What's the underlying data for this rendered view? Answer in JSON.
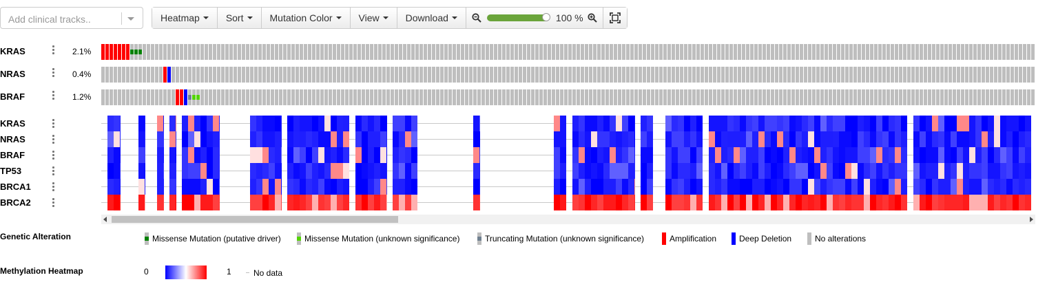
{
  "toolbar": {
    "clinical_placeholder": "Add clinical tracks..",
    "buttons": [
      "Heatmap",
      "Sort",
      "Mutation Color",
      "View",
      "Download"
    ],
    "zoom_value": "100 %",
    "zoom_level": 1.0
  },
  "genetic_tracks": [
    {
      "name": "KRAS",
      "pct": "2.1%"
    },
    {
      "name": "NRAS",
      "pct": "0.4%"
    },
    {
      "name": "BRAF",
      "pct": "1.2%"
    }
  ],
  "heatmap_tracks": [
    "KRAS",
    "NRAS",
    "BRAF",
    "TP53",
    "BRCA1",
    "BRCA2"
  ],
  "colors": {
    "missense_driver": "#008000",
    "missense_unknown": "#53d400",
    "truncating_unknown": "#708090",
    "amplification": "#ff0000",
    "deep_deletion": "#0000ff",
    "no_alteration": "#bebebe"
  },
  "legend": {
    "genetic_title": "Genetic Alteration",
    "genetic_items": [
      {
        "label": "Missense Mutation (putative driver)",
        "color": "#008000"
      },
      {
        "label": "Missense Mutation (unknown significance)",
        "color": "#53d400"
      },
      {
        "label": "Truncating Mutation (unknown significance)",
        "color": "#708090"
      },
      {
        "label": "Amplification",
        "color": "#ff0000"
      },
      {
        "label": "Deep Deletion",
        "color": "#0000ff"
      },
      {
        "label": "No alterations",
        "color": "#bebebe"
      }
    ],
    "methylation_title": "Methylation Heatmap",
    "heat_min": "0",
    "heat_max": "1",
    "no_data": "No data"
  }
}
